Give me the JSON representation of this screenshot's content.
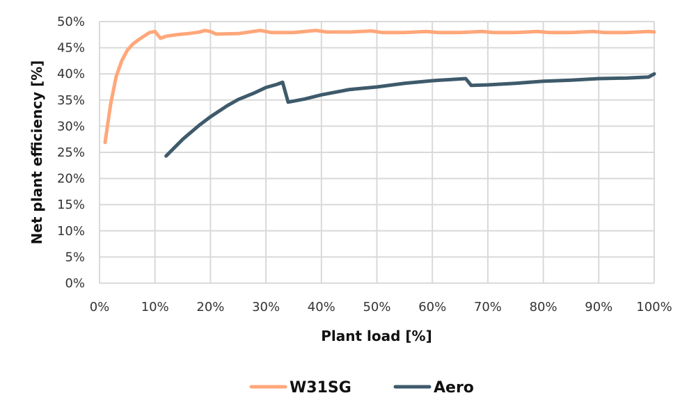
{
  "chart_data": {
    "type": "line",
    "xlabel": "Plant load [%]",
    "ylabel": "Net plant efficiency [%]",
    "xlim": [
      0,
      100
    ],
    "ylim": [
      0,
      50
    ],
    "x_ticks": [
      "0%",
      "10%",
      "20%",
      "30%",
      "40%",
      "50%",
      "60%",
      "70%",
      "80%",
      "90%",
      "100%"
    ],
    "y_ticks": [
      "0%",
      "5%",
      "10%",
      "15%",
      "20%",
      "25%",
      "30%",
      "35%",
      "40%",
      "45%",
      "50%"
    ],
    "grid": true,
    "legend_placement": "bottom",
    "series": [
      {
        "name": "W31SG",
        "color": "#FFA77A",
        "x": [
          1,
          2,
          3,
          4,
          5,
          6,
          7,
          8,
          9,
          10,
          11,
          12,
          14,
          16,
          18,
          19,
          20,
          21,
          25,
          29,
          31,
          35,
          39,
          41,
          45,
          49,
          51,
          55,
          59,
          61,
          65,
          69,
          71,
          75,
          79,
          81,
          85,
          89,
          91,
          95,
          99,
          100
        ],
        "y": [
          26.9,
          34.2,
          39.5,
          42.5,
          44.5,
          45.7,
          46.5,
          47.2,
          47.9,
          48.1,
          46.8,
          47.2,
          47.5,
          47.7,
          48.0,
          48.3,
          48.1,
          47.6,
          47.7,
          48.3,
          47.9,
          47.9,
          48.3,
          48.0,
          48.0,
          48.2,
          47.9,
          47.9,
          48.1,
          47.9,
          47.9,
          48.1,
          47.9,
          47.9,
          48.1,
          47.9,
          47.9,
          48.1,
          47.9,
          47.9,
          48.1,
          48.0
        ]
      },
      {
        "name": "Aero",
        "color": "#3E5A6B",
        "x": [
          12,
          15,
          18,
          20,
          23,
          25,
          28,
          30,
          32,
          33,
          34,
          37,
          40,
          45,
          50,
          55,
          60,
          66,
          67,
          70,
          75,
          80,
          85,
          90,
          95,
          99,
          100
        ],
        "y": [
          24.3,
          27.5,
          30.2,
          31.8,
          33.9,
          35.1,
          36.4,
          37.4,
          38.0,
          38.4,
          34.6,
          35.2,
          36.0,
          37.0,
          37.5,
          38.2,
          38.7,
          39.1,
          37.8,
          37.9,
          38.2,
          38.6,
          38.8,
          39.1,
          39.2,
          39.4,
          40.0
        ]
      }
    ]
  }
}
